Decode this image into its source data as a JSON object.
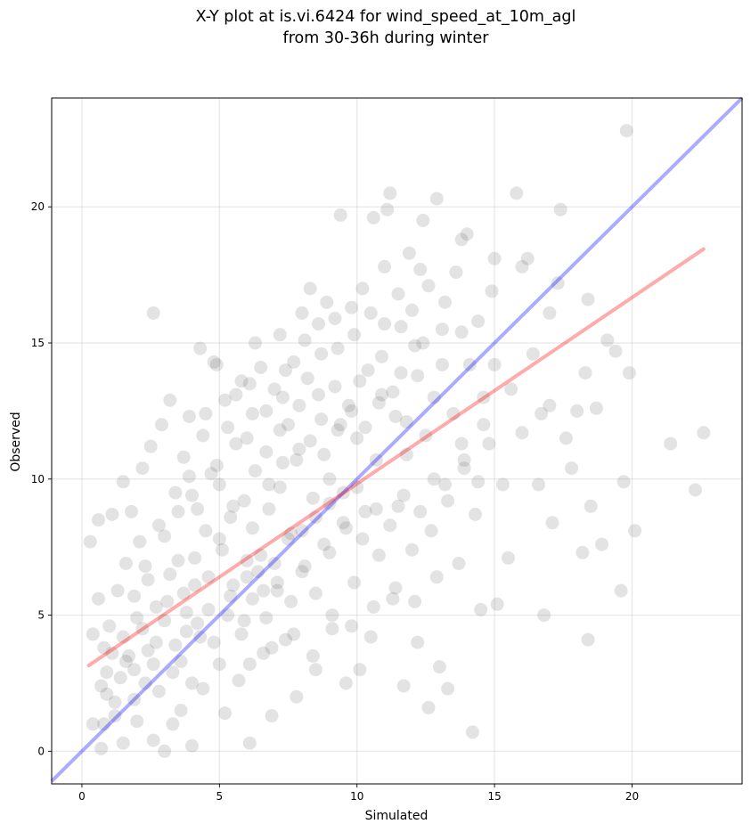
{
  "chart_data": {
    "type": "scatter",
    "title": [
      "X-Y plot at is.vi.6424 for wind_speed_at_10m_agl",
      "from 30-36h during winter"
    ],
    "xlabel": "Simulated",
    "ylabel": "Observed",
    "xlim": [
      -1.1,
      24
    ],
    "ylim": [
      -1.2,
      24
    ],
    "xticks": [
      0,
      5,
      10,
      15,
      20
    ],
    "yticks": [
      0,
      5,
      10,
      15,
      20
    ],
    "grid": true,
    "colors": {
      "points": "#5a5a5a",
      "identity_line": "#0000ff",
      "regression_line": "#ff0000"
    },
    "identity_line": {
      "x": [
        -1.1,
        24
      ],
      "y": [
        -1.1,
        24
      ]
    },
    "regression_line": {
      "x": [
        0.25,
        22.6
      ],
      "y": [
        3.15,
        18.45
      ]
    },
    "points": [
      [
        0.3,
        7.7
      ],
      [
        0.4,
        1.0
      ],
      [
        0.4,
        4.3
      ],
      [
        0.6,
        8.5
      ],
      [
        0.7,
        0.1
      ],
      [
        0.6,
        5.6
      ],
      [
        0.8,
        3.8
      ],
      [
        0.9,
        2.1
      ],
      [
        0.8,
        1.0
      ],
      [
        1.0,
        4.6
      ],
      [
        1.1,
        8.7
      ],
      [
        1.2,
        1.3
      ],
      [
        1.3,
        5.9
      ],
      [
        1.4,
        2.7
      ],
      [
        1.5,
        9.9
      ],
      [
        1.5,
        0.3
      ],
      [
        1.6,
        6.9
      ],
      [
        1.7,
        3.5
      ],
      [
        1.8,
        8.8
      ],
      [
        1.9,
        1.9
      ],
      [
        2.0,
        4.9
      ],
      [
        2.1,
        7.7
      ],
      [
        2.2,
        10.4
      ],
      [
        2.3,
        2.5
      ],
      [
        2.4,
        6.3
      ],
      [
        2.5,
        11.2
      ],
      [
        2.6,
        16.1
      ],
      [
        2.6,
        0.4
      ],
      [
        2.7,
        4.0
      ],
      [
        2.8,
        8.3
      ],
      [
        2.9,
        12.0
      ],
      [
        3.0,
        0.0
      ],
      [
        3.1,
        5.5
      ],
      [
        3.2,
        12.9
      ],
      [
        3.3,
        2.9
      ],
      [
        3.4,
        9.5
      ],
      [
        3.5,
        7.0
      ],
      [
        3.6,
        1.5
      ],
      [
        3.7,
        10.8
      ],
      [
        3.8,
        4.4
      ],
      [
        3.9,
        12.3
      ],
      [
        4.0,
        0.2
      ],
      [
        4.1,
        6.1
      ],
      [
        4.2,
        8.9
      ],
      [
        4.3,
        14.8
      ],
      [
        4.4,
        2.3
      ],
      [
        4.5,
        12.4
      ],
      [
        4.6,
        5.2
      ],
      [
        4.7,
        10.2
      ],
      [
        4.8,
        14.3
      ],
      [
        4.9,
        14.2
      ],
      [
        5.0,
        3.2
      ],
      [
        5.1,
        7.4
      ],
      [
        5.2,
        1.4
      ],
      [
        5.3,
        11.9
      ],
      [
        5.4,
        5.7
      ],
      [
        5.5,
        9.0
      ],
      [
        5.6,
        13.1
      ],
      [
        5.7,
        2.6
      ],
      [
        5.8,
        13.6
      ],
      [
        5.9,
        4.8
      ],
      [
        6.0,
        11.5
      ],
      [
        6.1,
        0.3
      ],
      [
        6.2,
        8.2
      ],
      [
        6.3,
        15.0
      ],
      [
        6.4,
        6.6
      ],
      [
        6.5,
        14.1
      ],
      [
        6.6,
        3.6
      ],
      [
        6.7,
        12.5
      ],
      [
        6.8,
        9.8
      ],
      [
        6.9,
        1.3
      ],
      [
        7.0,
        13.3
      ],
      [
        7.1,
        5.9
      ],
      [
        7.2,
        15.3
      ],
      [
        7.3,
        10.6
      ],
      [
        7.4,
        4.1
      ],
      [
        7.5,
        12.0
      ],
      [
        7.6,
        8.0
      ],
      [
        7.7,
        14.3
      ],
      [
        7.8,
        2.0
      ],
      [
        7.9,
        11.1
      ],
      [
        8.0,
        16.1
      ],
      [
        8.1,
        6.8
      ],
      [
        8.2,
        13.7
      ],
      [
        8.3,
        17.0
      ],
      [
        8.4,
        9.3
      ],
      [
        8.5,
        3.0
      ],
      [
        8.6,
        15.7
      ],
      [
        8.7,
        12.2
      ],
      [
        8.8,
        7.6
      ],
      [
        8.9,
        16.5
      ],
      [
        9.0,
        10.0
      ],
      [
        9.1,
        4.5
      ],
      [
        9.2,
        13.4
      ],
      [
        9.3,
        14.8
      ],
      [
        9.4,
        19.7
      ],
      [
        9.5,
        8.4
      ],
      [
        9.6,
        2.5
      ],
      [
        9.7,
        12.7
      ],
      [
        9.8,
        16.3
      ],
      [
        9.9,
        6.2
      ],
      [
        10.0,
        11.5
      ],
      [
        10.1,
        3.0
      ],
      [
        10.2,
        17.0
      ],
      [
        10.3,
        8.8
      ],
      [
        10.4,
        14.0
      ],
      [
        10.5,
        4.2
      ],
      [
        10.6,
        19.6
      ],
      [
        10.7,
        10.7
      ],
      [
        10.8,
        7.2
      ],
      [
        10.9,
        13.1
      ],
      [
        11.0,
        17.8
      ],
      [
        11.1,
        19.9
      ],
      [
        11.2,
        20.5
      ],
      [
        11.3,
        5.6
      ],
      [
        11.4,
        12.3
      ],
      [
        11.5,
        9.0
      ],
      [
        11.6,
        15.6
      ],
      [
        11.7,
        2.4
      ],
      [
        11.8,
        10.9
      ],
      [
        11.9,
        18.3
      ],
      [
        12.0,
        7.4
      ],
      [
        12.1,
        14.9
      ],
      [
        12.2,
        4.0
      ],
      [
        12.3,
        17.7
      ],
      [
        12.4,
        19.5
      ],
      [
        12.5,
        11.6
      ],
      [
        12.6,
        1.6
      ],
      [
        12.7,
        8.1
      ],
      [
        12.8,
        13.0
      ],
      [
        12.9,
        20.3
      ],
      [
        13.0,
        3.1
      ],
      [
        13.1,
        15.5
      ],
      [
        13.2,
        9.8
      ],
      [
        13.3,
        2.3
      ],
      [
        13.5,
        12.4
      ],
      [
        13.6,
        17.6
      ],
      [
        13.7,
        6.9
      ],
      [
        13.8,
        18.8
      ],
      [
        13.9,
        10.4
      ],
      [
        14.0,
        19.0
      ],
      [
        14.1,
        14.2
      ],
      [
        14.2,
        0.7
      ],
      [
        14.3,
        8.7
      ],
      [
        14.4,
        15.8
      ],
      [
        14.5,
        5.2
      ],
      [
        14.6,
        12.0
      ],
      [
        14.8,
        11.3
      ],
      [
        15.0,
        18.1
      ],
      [
        15.1,
        5.4
      ],
      [
        15.3,
        9.8
      ],
      [
        15.5,
        7.1
      ],
      [
        15.6,
        13.3
      ],
      [
        15.8,
        20.5
      ],
      [
        16.0,
        11.7
      ],
      [
        16.2,
        18.1
      ],
      [
        16.4,
        14.6
      ],
      [
        16.6,
        9.8
      ],
      [
        16.8,
        5.0
      ],
      [
        17.0,
        12.7
      ],
      [
        17.1,
        8.4
      ],
      [
        17.3,
        17.2
      ],
      [
        17.4,
        19.9
      ],
      [
        17.6,
        11.5
      ],
      [
        17.8,
        10.4
      ],
      [
        18.0,
        12.5
      ],
      [
        18.2,
        7.3
      ],
      [
        18.3,
        13.9
      ],
      [
        18.4,
        4.1
      ],
      [
        18.5,
        9.0
      ],
      [
        18.7,
        12.6
      ],
      [
        18.9,
        7.6
      ],
      [
        19.1,
        15.1
      ],
      [
        19.4,
        14.7
      ],
      [
        19.6,
        5.9
      ],
      [
        19.7,
        9.9
      ],
      [
        19.8,
        22.8
      ],
      [
        19.9,
        13.9
      ],
      [
        20.1,
        8.1
      ],
      [
        21.4,
        11.3
      ],
      [
        22.3,
        9.6
      ],
      [
        22.6,
        11.7
      ],
      [
        16.0,
        17.8
      ],
      [
        15.0,
        14.2
      ],
      [
        13.8,
        11.3
      ],
      [
        14.9,
        16.9
      ],
      [
        17.0,
        16.1
      ],
      [
        16.7,
        12.4
      ],
      [
        18.4,
        16.6
      ],
      [
        14.6,
        13.0
      ],
      [
        1.2,
        1.8
      ],
      [
        0.9,
        2.9
      ],
      [
        1.6,
        3.3
      ],
      [
        2.0,
        1.1
      ],
      [
        2.4,
        3.7
      ],
      [
        2.8,
        2.2
      ],
      [
        3.3,
        1.0
      ],
      [
        3.6,
        3.3
      ],
      [
        4.0,
        2.5
      ],
      [
        4.3,
        4.2
      ],
      [
        1.9,
        5.7
      ],
      [
        2.3,
        6.8
      ],
      [
        2.7,
        5.3
      ],
      [
        3.2,
        6.5
      ],
      [
        3.7,
        5.8
      ],
      [
        4.1,
        7.1
      ],
      [
        4.6,
        6.4
      ],
      [
        5.0,
        7.8
      ],
      [
        5.5,
        6.1
      ],
      [
        6.0,
        7.0
      ],
      [
        3.0,
        7.9
      ],
      [
        3.5,
        8.8
      ],
      [
        4.0,
        9.4
      ],
      [
        4.5,
        8.1
      ],
      [
        5.0,
        9.8
      ],
      [
        5.4,
        8.6
      ],
      [
        5.9,
        9.2
      ],
      [
        6.3,
        10.3
      ],
      [
        6.8,
        8.9
      ],
      [
        7.2,
        9.7
      ],
      [
        4.8,
        4.0
      ],
      [
        5.3,
        5.0
      ],
      [
        5.8,
        4.3
      ],
      [
        6.2,
        5.6
      ],
      [
        6.7,
        4.9
      ],
      [
        7.1,
        6.2
      ],
      [
        7.6,
        5.5
      ],
      [
        8.0,
        6.6
      ],
      [
        8.5,
        5.8
      ],
      [
        9.0,
        7.3
      ],
      [
        6.0,
        6.4
      ],
      [
        6.5,
        7.2
      ],
      [
        7.0,
        6.9
      ],
      [
        7.5,
        7.8
      ],
      [
        8.0,
        8.1
      ],
      [
        8.5,
        8.6
      ],
      [
        9.0,
        9.1
      ],
      [
        9.5,
        9.5
      ],
      [
        10.0,
        9.7
      ],
      [
        6.6,
        5.9
      ],
      [
        7.8,
        10.7
      ],
      [
        8.3,
        11.4
      ],
      [
        8.8,
        10.9
      ],
      [
        9.3,
        11.8
      ],
      [
        9.8,
        12.5
      ],
      [
        10.3,
        11.9
      ],
      [
        10.8,
        12.8
      ],
      [
        11.3,
        13.2
      ],
      [
        11.8,
        12.1
      ],
      [
        12.2,
        13.8
      ],
      [
        6.1,
        3.2
      ],
      [
        6.9,
        3.8
      ],
      [
        7.7,
        4.3
      ],
      [
        8.4,
        3.5
      ],
      [
        9.1,
        5.0
      ],
      [
        9.8,
        4.6
      ],
      [
        10.6,
        5.3
      ],
      [
        11.4,
        6.0
      ],
      [
        12.1,
        5.5
      ],
      [
        12.9,
        6.4
      ],
      [
        7.2,
        11.8
      ],
      [
        7.9,
        12.7
      ],
      [
        8.6,
        13.1
      ],
      [
        9.4,
        12.0
      ],
      [
        10.1,
        13.6
      ],
      [
        10.9,
        14.5
      ],
      [
        11.6,
        13.9
      ],
      [
        12.4,
        15.0
      ],
      [
        13.1,
        14.2
      ],
      [
        13.8,
        15.4
      ],
      [
        0.7,
        2.4
      ],
      [
        1.1,
        3.6
      ],
      [
        1.5,
        4.2
      ],
      [
        1.9,
        3.0
      ],
      [
        2.2,
        4.5
      ],
      [
        2.6,
        3.2
      ],
      [
        3.0,
        4.8
      ],
      [
        3.4,
        3.9
      ],
      [
        3.8,
        5.1
      ],
      [
        4.2,
        4.7
      ],
      [
        9.6,
        8.2
      ],
      [
        10.2,
        7.8
      ],
      [
        10.7,
        8.9
      ],
      [
        11.2,
        8.3
      ],
      [
        11.7,
        9.4
      ],
      [
        12.3,
        8.8
      ],
      [
        12.8,
        10.0
      ],
      [
        13.3,
        9.2
      ],
      [
        13.9,
        10.7
      ],
      [
        14.4,
        9.9
      ],
      [
        5.6,
        11.3
      ],
      [
        6.2,
        12.4
      ],
      [
        6.7,
        11.0
      ],
      [
        7.3,
        13.0
      ],
      [
        4.9,
        10.5
      ],
      [
        4.4,
        11.6
      ],
      [
        3.9,
        10.1
      ],
      [
        5.2,
        12.9
      ],
      [
        6.1,
        13.5
      ],
      [
        7.4,
        14.0
      ],
      [
        8.1,
        15.1
      ],
      [
        8.7,
        14.6
      ],
      [
        9.2,
        15.9
      ],
      [
        9.9,
        15.3
      ],
      [
        10.5,
        16.1
      ],
      [
        11.0,
        15.7
      ],
      [
        11.5,
        16.8
      ],
      [
        12.0,
        16.2
      ],
      [
        12.6,
        17.1
      ],
      [
        13.2,
        16.5
      ]
    ]
  }
}
